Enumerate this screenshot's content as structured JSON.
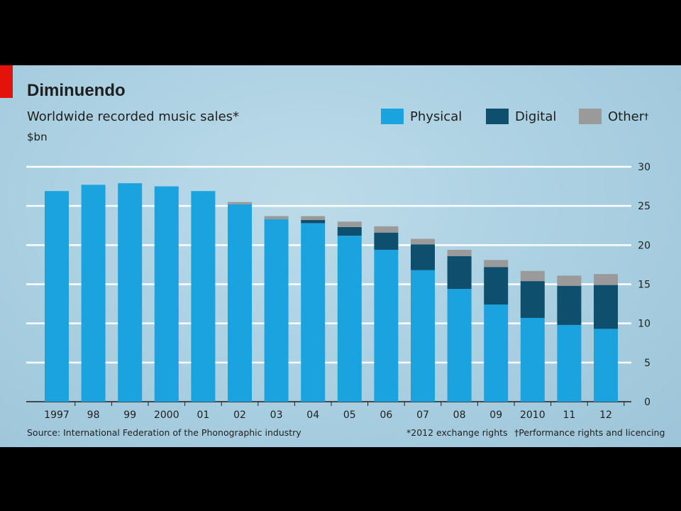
{
  "colors": {
    "physical": "#1ba3e0",
    "digital": "#0e4f6e",
    "other": "#9a9a9a",
    "grid": "#ffffff",
    "brand_red": "#e3120b"
  },
  "header": {
    "title": "Diminuendo",
    "subtitle": "Worldwide recorded music sales*",
    "unit": "$bn"
  },
  "legend": [
    {
      "label": "Physical",
      "color": "#1ba3e0"
    },
    {
      "label": "Digital",
      "color": "#0e4f6e"
    },
    {
      "label": "Other",
      "color": "#9a9a9a",
      "mark": "†"
    }
  ],
  "footer": {
    "source": "Source: International Federation of the Phonographic industry",
    "note1": "*2012 exchange rights",
    "note2": "†Performance rights and licencing"
  },
  "chart_data": {
    "type": "bar",
    "stacked": true,
    "title": "Diminuendo",
    "subtitle": "Worldwide recorded music sales*",
    "ylabel": "$bn",
    "ylim": [
      0,
      30
    ],
    "yticks": [
      0,
      5,
      10,
      15,
      20,
      25,
      30
    ],
    "y_axis_side": "right",
    "grid": true,
    "legend_position": "top-right",
    "categories": [
      "1997",
      "98",
      "99",
      "2000",
      "01",
      "02",
      "03",
      "04",
      "05",
      "06",
      "07",
      "08",
      "09",
      "2010",
      "11",
      "12"
    ],
    "series": [
      {
        "name": "Physical",
        "values": [
          26.9,
          27.7,
          27.9,
          27.5,
          26.9,
          25.2,
          23.3,
          22.8,
          21.2,
          19.4,
          16.8,
          14.4,
          12.4,
          10.7,
          9.8,
          9.3
        ]
      },
      {
        "name": "Digital",
        "values": [
          0,
          0,
          0,
          0,
          0,
          0,
          0,
          0.4,
          1.1,
          2.2,
          3.3,
          4.2,
          4.8,
          4.7,
          5.0,
          5.6
        ]
      },
      {
        "name": "Other",
        "values": [
          0,
          0,
          0,
          0,
          0,
          0.3,
          0.4,
          0.5,
          0.7,
          0.8,
          0.7,
          0.8,
          0.9,
          1.3,
          1.3,
          1.4
        ]
      }
    ]
  }
}
